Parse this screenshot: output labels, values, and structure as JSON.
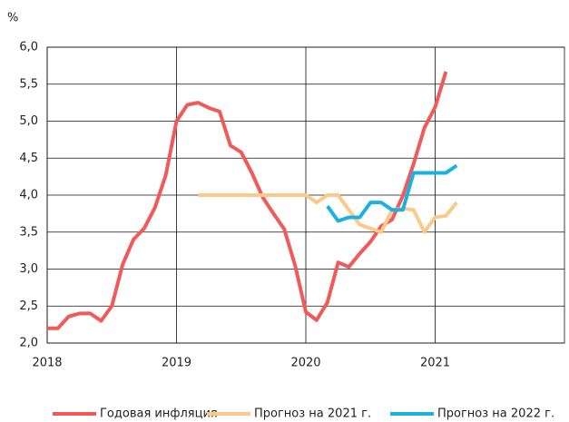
{
  "chart_data": {
    "type": "line",
    "unit": "%",
    "x": [
      2018,
      2018.083,
      2018.167,
      2018.25,
      2018.333,
      2018.417,
      2018.5,
      2018.583,
      2018.667,
      2018.75,
      2018.833,
      2018.917,
      2019,
      2019.083,
      2019.167,
      2019.25,
      2019.333,
      2019.417,
      2019.5,
      2019.583,
      2019.667,
      2019.75,
      2019.833,
      2019.917,
      2020,
      2020.083,
      2020.167,
      2020.25,
      2020.333,
      2020.417,
      2020.5,
      2020.583,
      2020.667,
      2020.75,
      2020.833,
      2020.917,
      2021,
      2021.083,
      2021.167
    ],
    "series": [
      {
        "name": "Годовая инфляция",
        "color": "#f05a5a",
        "values": [
          2.2,
          2.2,
          2.36,
          2.4,
          2.4,
          2.3,
          2.5,
          3.06,
          3.4,
          3.55,
          3.83,
          4.27,
          5.0,
          5.22,
          5.25,
          5.18,
          5.13,
          4.67,
          4.58,
          4.3,
          3.97,
          3.75,
          3.54,
          3.05,
          2.42,
          2.31,
          2.55,
          3.09,
          3.03,
          3.21,
          3.37,
          3.58,
          3.67,
          3.99,
          4.42,
          4.91,
          5.19,
          5.67,
          null
        ]
      },
      {
        "name": "Прогноз на 2021 г.",
        "color": "#fdc98a",
        "values": [
          null,
          null,
          null,
          null,
          null,
          null,
          null,
          null,
          null,
          null,
          null,
          null,
          null,
          null,
          4.0,
          4.0,
          4.0,
          4.0,
          4.0,
          4.0,
          4.0,
          4.0,
          4.0,
          4.0,
          4.0,
          3.9,
          4.0,
          4.0,
          3.8,
          3.6,
          3.55,
          3.5,
          3.8,
          3.82,
          3.8,
          3.5,
          3.7,
          3.72,
          3.9
        ]
      },
      {
        "name": "Прогноз на 2022 г.",
        "color": "#1ab3e0",
        "values": [
          null,
          null,
          null,
          null,
          null,
          null,
          null,
          null,
          null,
          null,
          null,
          null,
          null,
          null,
          null,
          null,
          null,
          null,
          null,
          null,
          null,
          null,
          null,
          null,
          null,
          null,
          3.85,
          3.65,
          3.7,
          3.7,
          3.9,
          3.9,
          3.8,
          3.8,
          4.3,
          4.3,
          4.3,
          4.3,
          4.4
        ]
      }
    ],
    "xlim": [
      2018,
      2022
    ],
    "xticks": [
      2018,
      2019,
      2020,
      2021
    ],
    "ylim": [
      2.0,
      6.0
    ],
    "yticks": [
      {
        "value": 2.0,
        "label": "2,0"
      },
      {
        "value": 2.5,
        "label": "2,5"
      },
      {
        "value": 3.0,
        "label": "3,0"
      },
      {
        "value": 3.5,
        "label": "3,5"
      },
      {
        "value": 4.0,
        "label": "4,0"
      },
      {
        "value": 4.5,
        "label": "4,5"
      },
      {
        "value": 5.0,
        "label": "5,0"
      },
      {
        "value": 5.5,
        "label": "5,5"
      },
      {
        "value": 6.0,
        "label": "6,0"
      }
    ],
    "grid": true,
    "legend": "bottom"
  }
}
